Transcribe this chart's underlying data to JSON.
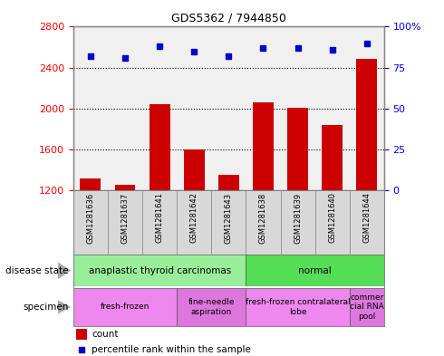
{
  "title": "GDS5362 / 7944850",
  "samples": [
    "GSM1281636",
    "GSM1281637",
    "GSM1281641",
    "GSM1281642",
    "GSM1281643",
    "GSM1281638",
    "GSM1281639",
    "GSM1281640",
    "GSM1281644"
  ],
  "counts": [
    1320,
    1255,
    2040,
    1600,
    1350,
    2060,
    2010,
    1840,
    2490
  ],
  "percentiles": [
    82,
    81,
    88,
    85,
    82,
    87,
    87,
    86,
    90
  ],
  "ylim_left": [
    1200,
    2800
  ],
  "ylim_right": [
    0,
    100
  ],
  "yticks_left": [
    1200,
    1600,
    2000,
    2400,
    2800
  ],
  "yticks_right": [
    0,
    25,
    50,
    75,
    100
  ],
  "bar_color": "#cc0000",
  "dot_color": "#0000cc",
  "chart_bg": "#f0f0f0",
  "disease_state_groups": [
    {
      "label": "anaplastic thyroid carcinomas",
      "start": 0,
      "end": 5,
      "color": "#99ee99"
    },
    {
      "label": "normal",
      "start": 5,
      "end": 9,
      "color": "#55dd55"
    }
  ],
  "specimen_groups": [
    {
      "label": "fresh-frozen",
      "start": 0,
      "end": 3,
      "color": "#ee88ee"
    },
    {
      "label": "fine-needle\naspiration",
      "start": 3,
      "end": 5,
      "color": "#dd77dd"
    },
    {
      "label": "fresh-frozen contralateral\nlobe",
      "start": 5,
      "end": 8,
      "color": "#ee88ee"
    },
    {
      "label": "commer\ncial RNA\npool",
      "start": 8,
      "end": 9,
      "color": "#dd77dd"
    }
  ],
  "label_disease_state": "disease state",
  "label_specimen": "specimen",
  "legend_count_color": "#cc0000",
  "legend_percentile_color": "#0000cc",
  "background_color": "#ffffff",
  "border_color": "#aaaaaa"
}
